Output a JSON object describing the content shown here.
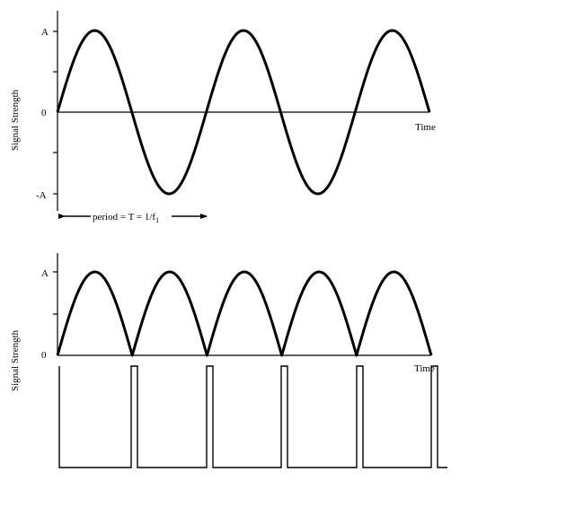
{
  "top_panel": {
    "y_label": "Signal Strength",
    "tick_pos": "A",
    "tick_zero": "0",
    "tick_neg": "-A",
    "x_label": "Time",
    "period_text": "period = T = 1/f",
    "period_sub": "1"
  },
  "bottom_panel": {
    "y_label": "Signal Strength",
    "tick_pos": "A",
    "tick_zero": "0",
    "x_label": "Time"
  }
}
